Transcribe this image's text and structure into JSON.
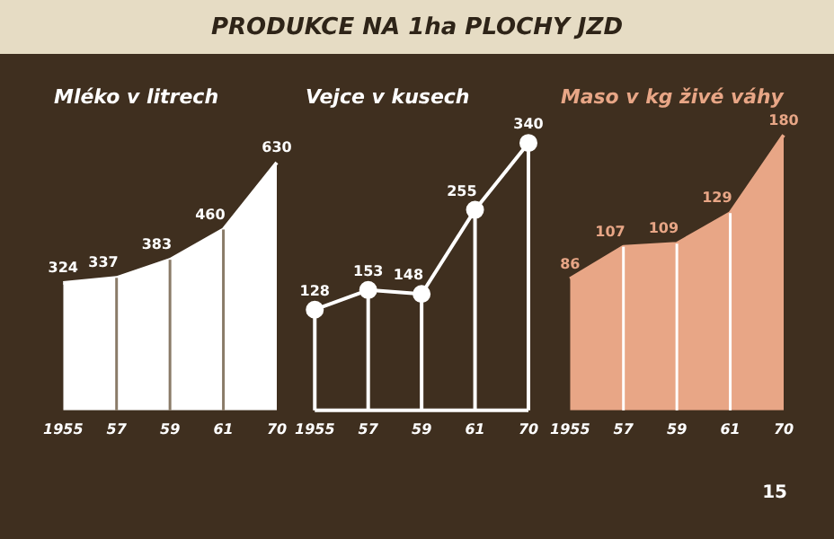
{
  "chart_data": [
    {
      "type": "area",
      "title": "Mléko v litrech",
      "categories": [
        "1955",
        "57",
        "59",
        "61",
        "70"
      ],
      "series": [
        {
          "color": "#ffffff",
          "values": [
            324,
            337,
            383,
            460,
            630
          ]
        }
      ],
      "data_labels": true,
      "grid": "x",
      "legend": false,
      "tick_labels": "x",
      "annotations": [
        "PRODUKCE NA 1ha PLOCHY JZD"
      ]
    },
    {
      "type": "line",
      "title": "Vejce v kusech",
      "categories": [
        "1955",
        "57",
        "59",
        "61",
        "70"
      ],
      "series": [
        {
          "color": "#ffffff",
          "values": [
            128,
            153,
            148,
            255,
            340
          ]
        }
      ],
      "data_labels": true,
      "grid": "x",
      "legend": false,
      "tick_labels": "x",
      "marker": "circle"
    },
    {
      "type": "area",
      "title": "Maso v kg živé váhy",
      "categories": [
        "1955",
        "57",
        "59",
        "61",
        "70"
      ],
      "series": [
        {
          "color": "#e8a686",
          "values": [
            86,
            107,
            109,
            129,
            180
          ]
        }
      ],
      "data_labels": true,
      "grid": "x",
      "legend": false,
      "tick_labels": "x",
      "annotations": [
        "15"
      ]
    }
  ]
}
